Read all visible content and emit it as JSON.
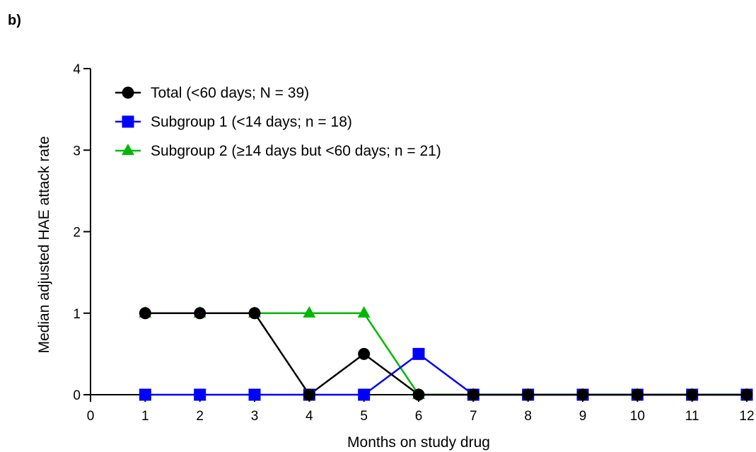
{
  "panel_label": "b)",
  "chart_data": {
    "type": "line",
    "xlabel": "Months on study drug",
    "ylabel": "Median adjusted HAE attack rate",
    "xlim": [
      0,
      12
    ],
    "ylim": [
      0,
      4
    ],
    "x_ticks": [
      "0",
      "1",
      "2",
      "3",
      "4",
      "5",
      "6",
      "7",
      "8",
      "9",
      "10",
      "11",
      "12"
    ],
    "y_ticks": [
      "0",
      "1",
      "2",
      "3",
      "4"
    ],
    "x": [
      1,
      2,
      3,
      4,
      5,
      6,
      7,
      8,
      9,
      10,
      11,
      12
    ],
    "grid": false,
    "legend_position": "top-left",
    "series": [
      {
        "name": "Subgroup 2 (≥14 days but <60 days; n = 21)",
        "color": "#00b800",
        "marker": "triangle",
        "values": [
          1,
          1,
          1,
          1,
          1,
          0,
          0,
          0,
          0,
          0,
          0,
          0
        ]
      },
      {
        "name": "Subgroup 1 (<14 days; n = 18)",
        "color": "#0000ff",
        "marker": "square",
        "values": [
          0,
          0,
          0,
          0,
          0,
          0.5,
          0,
          0,
          0,
          0,
          0,
          0
        ]
      },
      {
        "name": "Total (<60 days; N = 39)",
        "color": "#000000",
        "marker": "circle",
        "values": [
          1,
          1,
          1,
          0,
          0.5,
          0,
          0,
          0,
          0,
          0,
          0,
          0
        ]
      }
    ],
    "legend_order": [
      2,
      1,
      0
    ]
  }
}
